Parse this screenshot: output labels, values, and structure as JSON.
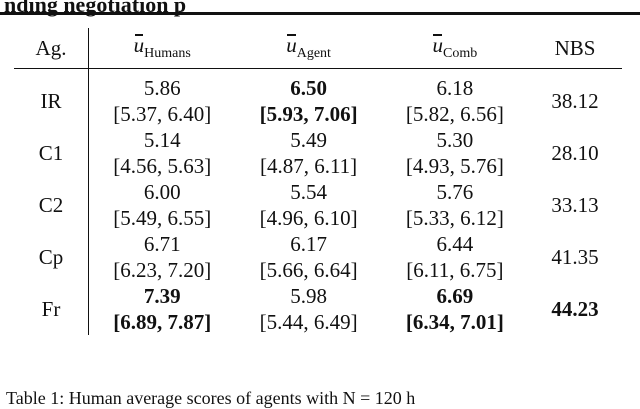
{
  "header_cut_text": "nding negotiation p",
  "columns": {
    "agent": "Ag.",
    "humans": {
      "sym": "u",
      "sub": "Humans"
    },
    "agentcol": {
      "sym": "u",
      "sub": "Agent"
    },
    "comb": {
      "sym": "u",
      "sub": "Comb"
    },
    "nbs": "NBS"
  },
  "rows": [
    {
      "agent": "IR",
      "humans": [
        "5.86",
        "[5.37, 6.40]"
      ],
      "agentv": [
        "6.50",
        "[5.93, 7.06]"
      ],
      "comb": [
        "6.18",
        "[5.82, 6.56]"
      ],
      "nbs": "38.12"
    },
    {
      "agent": "C1",
      "humans": [
        "5.14",
        "[4.56, 5.63]"
      ],
      "agentv": [
        "5.49",
        "[4.87, 6.11]"
      ],
      "comb": [
        "5.30",
        "[4.93, 5.76]"
      ],
      "nbs": "28.10"
    },
    {
      "agent": "C2",
      "humans": [
        "6.00",
        "[5.49, 6.55]"
      ],
      "agentv": [
        "5.54",
        "[4.96, 6.10]"
      ],
      "comb": [
        "5.76",
        "[5.33, 6.12]"
      ],
      "nbs": "33.13"
    },
    {
      "agent": "Cp",
      "humans": [
        "6.71",
        "[6.23, 7.20]"
      ],
      "agentv": [
        "6.17",
        "[5.66, 6.64]"
      ],
      "comb": [
        "6.44",
        "[6.11, 6.75]"
      ],
      "nbs": "41.35"
    },
    {
      "agent": "Fr",
      "humans": [
        "7.39",
        "[6.89, 7.87]"
      ],
      "agentv": [
        "5.98",
        "[5.44, 6.49]"
      ],
      "comb": [
        "6.69",
        "[6.34, 7.01]"
      ],
      "nbs": "44.23"
    }
  ],
  "caption": "Table 1: Human average scores of agents with N = 120 h"
}
